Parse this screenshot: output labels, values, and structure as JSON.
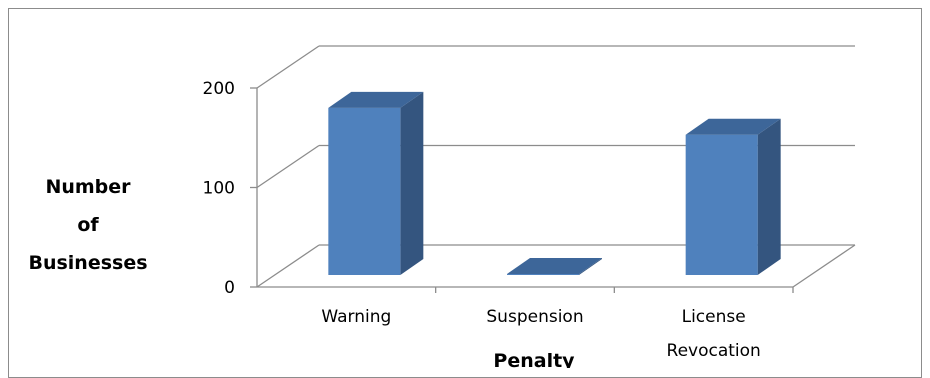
{
  "chart_data": {
    "type": "bar",
    "style": "3d-column",
    "categories": [
      "Warning",
      "Suspension",
      "License Revocation"
    ],
    "category_lines": [
      [
        "Warning"
      ],
      [
        "Suspension"
      ],
      [
        "License",
        "Revocation"
      ]
    ],
    "values": [
      168,
      1,
      141
    ],
    "xlabel": "Penalty",
    "ylabel": "Number of Businesses",
    "ylabel_lines": [
      "Number",
      "of",
      "Businesses"
    ],
    "ylim": [
      0,
      200
    ],
    "yticks": [
      0,
      100,
      200
    ],
    "grid": true,
    "legend": "none",
    "colors": {
      "bar_front": "#4f81bd",
      "bar_side": "#34557f",
      "bar_top": "#3d6699",
      "grid": "#8c8c8c"
    }
  }
}
